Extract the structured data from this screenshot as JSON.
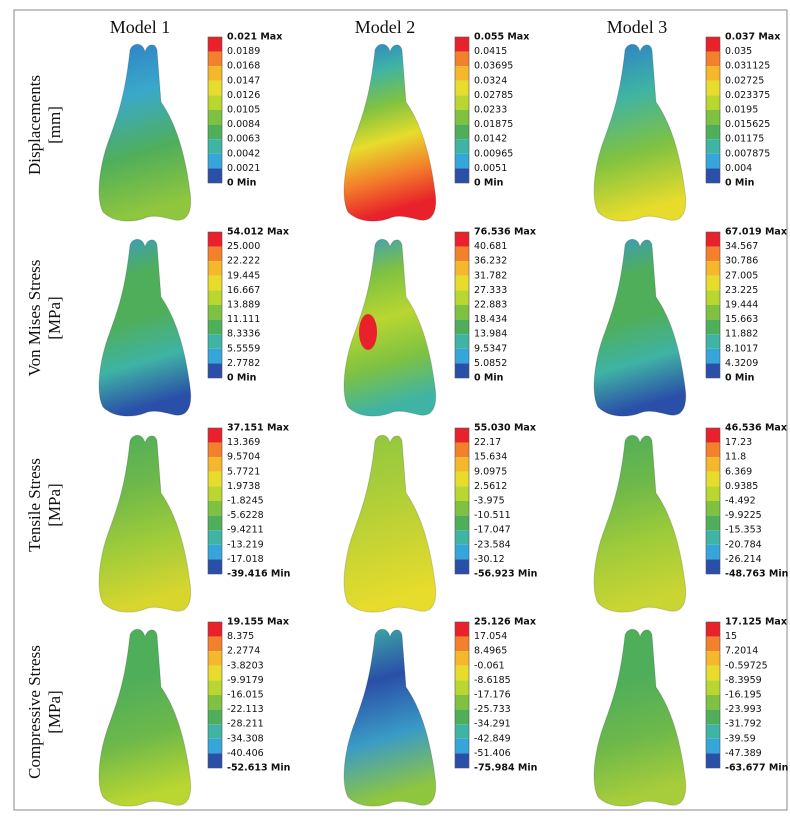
{
  "columns": [
    "Model 1",
    "Model 2",
    "Model 3"
  ],
  "rows": [
    {
      "label": "Displacements",
      "unit": "[mm]",
      "legends": [
        [
          "0.021 Max",
          "0.0189",
          "0.0168",
          "0.0147",
          "0.0126",
          "0.0105",
          "0.0084",
          "0.0063",
          "0.0042",
          "0.0021",
          "0 Min"
        ],
        [
          "0.055 Max",
          "0.0415",
          "0.03695",
          "0.0324",
          "0.02785",
          "0.0233",
          "0.01875",
          "0.0142",
          "0.00965",
          "0.0051",
          "0 Min"
        ],
        [
          "0.037 Max",
          "0.035",
          "0.031125",
          "0.02725",
          "0.023375",
          "0.0195",
          "0.015625",
          "0.01175",
          "0.007875",
          "0.004",
          "0 Min"
        ]
      ]
    },
    {
      "label": "Von Mises Stress",
      "unit": "[MPa]",
      "legends": [
        [
          "54.012 Max",
          "25.000",
          "22.222",
          "19.445",
          "16.667",
          "13.889",
          "11.111",
          "8.3336",
          "5.5559",
          "2.7782",
          "0 Min"
        ],
        [
          "76.536 Max",
          "40.681",
          "36.232",
          "31.782",
          "27.333",
          "22.883",
          "18.434",
          "13.984",
          "9.5347",
          "5.0852",
          "0 Min"
        ],
        [
          "67.019 Max",
          "34.567",
          "30.786",
          "27.005",
          "23.225",
          "19.444",
          "15.663",
          "11.882",
          "8.1017",
          "4.3209",
          "0 Min"
        ]
      ]
    },
    {
      "label": "Tensile Stress",
      "unit": "[MPa]",
      "legends": [
        [
          "37.151 Max",
          "13.369",
          "9.5704",
          "5.7721",
          "1.9738",
          "-1.8245",
          "-5.6228",
          "-9.4211",
          "-13.219",
          "-17.018",
          "-39.416 Min"
        ],
        [
          "55.030 Max",
          "22.17",
          "15.634",
          "9.0975",
          "2.5612",
          "-3.975",
          "-10.511",
          "-17.047",
          "-23.584",
          "-30.12",
          "-56.923 Min"
        ],
        [
          "46.536 Max",
          "17.23",
          "11.8",
          "6.369",
          "0.9385",
          "-4.492",
          "-9.9225",
          "-15.353",
          "-20.784",
          "-26.214",
          "-48.763 Min"
        ]
      ]
    },
    {
      "label": "Compressive Stress",
      "unit": "[MPa]",
      "legends": [
        [
          "19.155 Max",
          "8.375",
          "2.2774",
          "-3.8203",
          "-9.9179",
          "-16.015",
          "-22.113",
          "-28.211",
          "-34.308",
          "-40.406",
          "-52.613 Min"
        ],
        [
          "25.126 Max",
          "17.054",
          "8.4965",
          "-0.061",
          "-8.6185",
          "-17.176",
          "-25.733",
          "-34.291",
          "-42.849",
          "-51.406",
          "-75.984 Min"
        ],
        [
          "17.125 Max",
          "15",
          "7.2014",
          "-0.59725",
          "-8.3959",
          "-16.195",
          "-23.993",
          "-31.792",
          "-39.59",
          "-47.389",
          "-63.677 Min"
        ]
      ]
    }
  ]
}
